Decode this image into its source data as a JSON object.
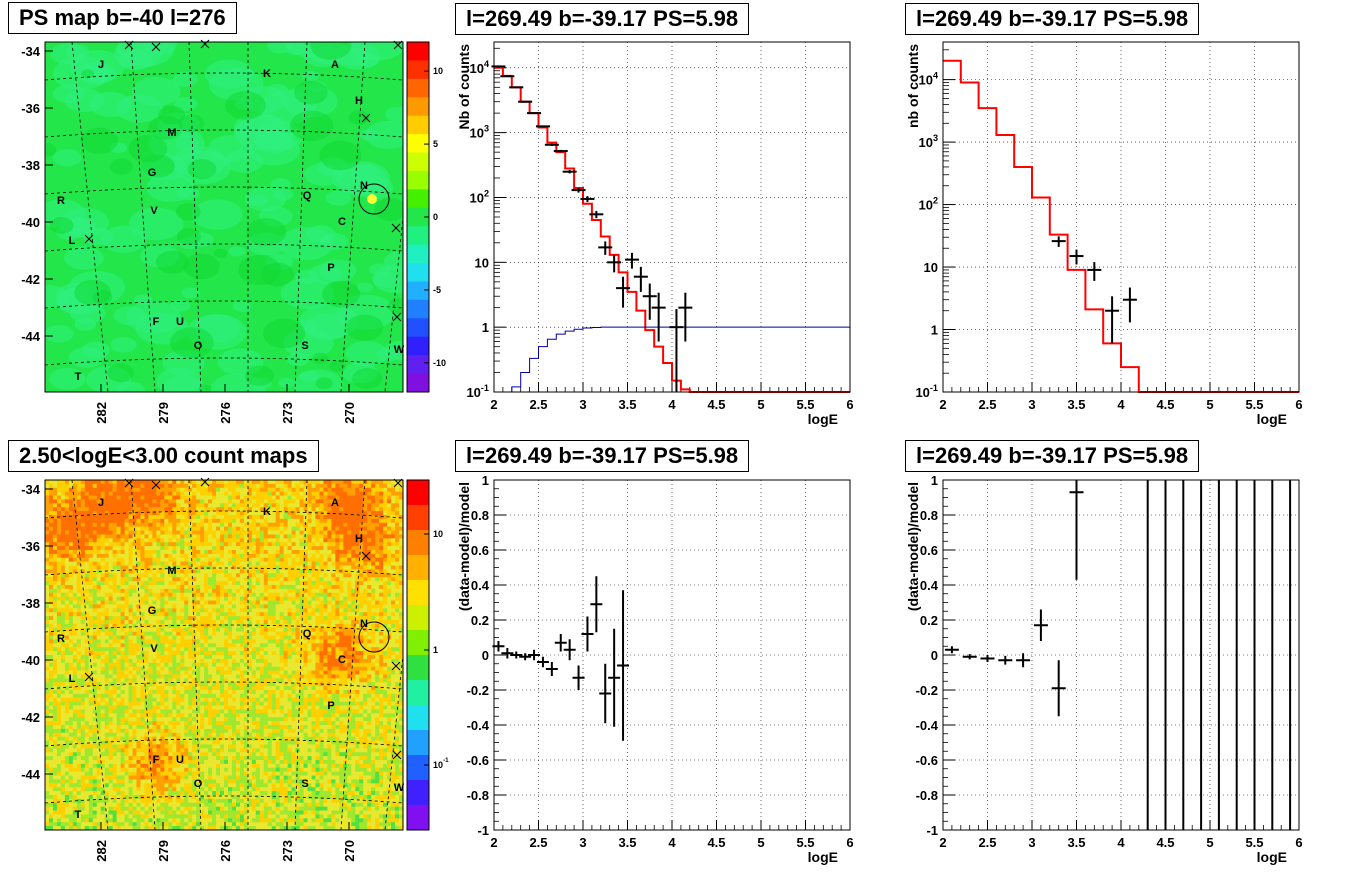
{
  "page": {
    "panels": {
      "map_top_title": "PS map b=-40 l=276",
      "map_bottom_title": "2.50<logE<3.00 count maps",
      "spec1_title": "l=269.49 b=-39.17 PS=5.98",
      "spec2_title": "l=269.49 b=-39.17 PS=5.98",
      "res1_title": "l=269.49 b=-39.17 PS=5.98",
      "res2_title": "l=269.49 b=-39.17 PS=5.98"
    }
  },
  "chart_data": [
    {
      "type": "heatmap",
      "title": "PS map b=-40 l=276",
      "x_ticks": [
        "282",
        "279",
        "276",
        "273",
        "270"
      ],
      "y_ticks": [
        "-34",
        "-36",
        "-38",
        "-40",
        "-42",
        "-44"
      ],
      "colorbar_ticks": [
        "10",
        "5",
        "0",
        "-5",
        "-10"
      ],
      "zlim": [
        -12,
        12
      ],
      "source_labels": [
        "J",
        "A",
        "K",
        "H",
        "M",
        "G",
        "N",
        "Q",
        "R",
        "V",
        "C",
        "L",
        "P",
        "F",
        "U",
        "O",
        "S",
        "W",
        "T"
      ],
      "colors": {
        "background": "#22e64a",
        "hotspot": "#ffff33",
        "cool_patch": "#30f080"
      }
    },
    {
      "type": "heatmap",
      "title": "2.50<logE<3.00 count maps",
      "x_ticks": [
        "282",
        "279",
        "276",
        "273",
        "270"
      ],
      "y_ticks": [
        "-34",
        "-36",
        "-38",
        "-40",
        "-42",
        "-44"
      ],
      "colorbar_ticks": [
        "10",
        "1",
        "10^-1"
      ],
      "z_scale": "log",
      "source_labels": [
        "J",
        "A",
        "K",
        "H",
        "M",
        "G",
        "N",
        "Q",
        "R",
        "V",
        "C",
        "L",
        "P",
        "F",
        "U",
        "O",
        "S",
        "W",
        "T"
      ],
      "colors": {
        "high": "#ff6a00",
        "mid": "#ffd000",
        "low": "#66e633"
      }
    },
    {
      "type": "line",
      "title": "l=269.49 b=-39.17 PS=5.98",
      "xlabel": "logE",
      "ylabel": "Nb of counts",
      "xlim": [
        2,
        6
      ],
      "ylim": [
        0.1,
        25000
      ],
      "y_scale": "log",
      "x_ticks": [
        "2",
        "2.5",
        "3",
        "3.5",
        "4",
        "4.5",
        "5",
        "5.5",
        "6"
      ],
      "y_ticks": [
        "10^-1",
        "1",
        "10",
        "10^2",
        "10^3",
        "10^4"
      ],
      "series": [
        {
          "style": "step",
          "color": "#ff0000",
          "bin_width": 0.1,
          "x": [
            2.0,
            2.1,
            2.2,
            2.3,
            2.4,
            2.5,
            2.6,
            2.7,
            2.8,
            2.9,
            3.0,
            3.1,
            3.2,
            3.3,
            3.4,
            3.5,
            3.6,
            3.7,
            3.8,
            3.9,
            4.0,
            4.1,
            4.2,
            4.3,
            4.4,
            4.5,
            4.6,
            4.7,
            4.8,
            4.9,
            5.0,
            5.1,
            5.2,
            5.3,
            5.4,
            5.5,
            5.6,
            5.7,
            5.8,
            5.9
          ],
          "values": [
            10000,
            7500,
            5000,
            3000,
            2000,
            1200,
            700,
            500,
            280,
            140,
            80,
            45,
            25,
            13,
            7,
            3.5,
            1.8,
            0.9,
            0.5,
            0.28,
            0.15,
            0.11,
            0.1,
            0.1,
            0.1,
            0.1,
            0.1,
            0.1,
            0.1,
            0.1,
            0.1,
            0.1,
            0.1,
            0.1,
            0.1,
            0.1,
            0.1,
            0.1,
            0.1,
            0.1
          ]
        },
        {
          "style": "step",
          "color": "#0000aa",
          "bin_width": 0.1,
          "x": [
            2.0,
            2.1,
            2.2,
            2.3,
            2.4,
            2.5,
            2.6,
            2.7,
            2.8,
            2.9,
            3.0,
            3.1,
            3.2,
            3.3,
            3.4,
            3.5,
            3.6,
            3.7,
            3.8,
            3.9,
            4.0,
            4.1,
            4.2,
            4.3,
            4.4,
            4.5,
            4.6,
            4.7,
            4.8,
            4.9,
            5.0,
            5.1,
            5.2,
            5.3,
            5.4,
            5.5,
            5.6,
            5.7,
            5.8,
            5.9
          ],
          "values": [
            0.05,
            0.07,
            0.12,
            0.2,
            0.33,
            0.5,
            0.65,
            0.78,
            0.87,
            0.93,
            0.97,
            0.99,
            1,
            1,
            1,
            1,
            1,
            1,
            1,
            1,
            1,
            1,
            1,
            1,
            1,
            1,
            1,
            1,
            1,
            1,
            1,
            1,
            1,
            1,
            1,
            1,
            1,
            1,
            1,
            1
          ]
        },
        {
          "style": "errorbar",
          "color": "#000000",
          "x": [
            2.05,
            2.15,
            2.25,
            2.35,
            2.45,
            2.55,
            2.65,
            2.75,
            2.85,
            2.95,
            3.05,
            3.15,
            3.25,
            3.35,
            3.45,
            3.55,
            3.65,
            3.75,
            3.85,
            4.05,
            4.15
          ],
          "values": [
            10500,
            7400,
            5000,
            3000,
            2000,
            1250,
            650,
            520,
            250,
            130,
            95,
            55,
            17,
            10,
            4,
            11,
            6,
            3,
            2,
            1,
            2
          ],
          "err_low": [
            100,
            85,
            70,
            55,
            45,
            35,
            25,
            22,
            15,
            11,
            10,
            7,
            4,
            3,
            2,
            3,
            2.5,
            1.7,
            1.4,
            0.9,
            1.4
          ],
          "err_high": [
            100,
            85,
            70,
            55,
            45,
            35,
            25,
            22,
            15,
            11,
            10,
            7,
            4,
            3,
            2,
            3,
            2.5,
            1.7,
            1.4,
            0.9,
            1.4
          ]
        }
      ]
    },
    {
      "type": "line",
      "title": "l=269.49 b=-39.17 PS=5.98",
      "xlabel": "logE",
      "ylabel": "nb of counts",
      "xlim": [
        2,
        6
      ],
      "ylim": [
        0.1,
        40000
      ],
      "y_scale": "log",
      "x_ticks": [
        "2",
        "2.5",
        "3",
        "3.5",
        "4",
        "4.5",
        "5",
        "5.5",
        "6"
      ],
      "y_ticks": [
        "10^-1",
        "1",
        "10",
        "10^2",
        "10^3",
        "10^4"
      ],
      "series": [
        {
          "style": "step",
          "color": "#ff0000",
          "bin_width": 0.2,
          "x": [
            2.0,
            2.2,
            2.4,
            2.6,
            2.8,
            3.0,
            3.2,
            3.4,
            3.6,
            3.8,
            4.0,
            4.2,
            4.4,
            4.6,
            4.8,
            5.0,
            5.2,
            5.4,
            5.6,
            5.8
          ],
          "values": [
            20000,
            9000,
            3500,
            1300,
            400,
            130,
            33,
            9,
            2.1,
            0.6,
            0.25,
            0.1,
            0.1,
            0.1,
            0.1,
            0.1,
            0.1,
            0.1,
            0.1,
            0.1
          ]
        },
        {
          "style": "errorbar",
          "color": "#000000",
          "x": [
            3.3,
            3.5,
            3.7,
            3.9,
            4.1
          ],
          "values": [
            26,
            15,
            9,
            2,
            3
          ],
          "err_low": [
            5,
            4,
            3,
            1.4,
            1.7
          ],
          "err_high": [
            5,
            4,
            3,
            1.4,
            1.7
          ]
        }
      ]
    },
    {
      "type": "scatter",
      "title": "l=269.49 b=-39.17 PS=5.98",
      "xlabel": "logE",
      "ylabel": "(data-model)/model",
      "xlim": [
        2,
        6
      ],
      "ylim": [
        -1,
        1
      ],
      "x_ticks": [
        "2",
        "2.5",
        "3",
        "3.5",
        "4",
        "4.5",
        "5",
        "5.5",
        "6"
      ],
      "y_ticks": [
        "-1",
        "-0.8",
        "-0.6",
        "-0.4",
        "-0.2",
        "0",
        "0.2",
        "0.4",
        "0.6",
        "0.8",
        "1"
      ],
      "series": [
        {
          "style": "errorbar",
          "color": "#000000",
          "x": [
            2.05,
            2.15,
            2.25,
            2.35,
            2.45,
            2.55,
            2.65,
            2.75,
            2.85,
            2.95,
            3.05,
            3.15,
            3.25,
            3.35,
            3.45
          ],
          "values": [
            0.05,
            0.01,
            0.0,
            -0.01,
            0.0,
            -0.04,
            -0.08,
            0.07,
            0.03,
            -0.13,
            0.12,
            0.29,
            -0.22,
            -0.13,
            -0.06
          ],
          "err": [
            0.03,
            0.03,
            0.02,
            0.02,
            0.03,
            0.03,
            0.04,
            0.05,
            0.06,
            0.07,
            0.1,
            0.16,
            0.17,
            0.28,
            0.43
          ]
        }
      ]
    },
    {
      "type": "scatter",
      "title": "l=269.49 b=-39.17 PS=5.98",
      "xlabel": "logE",
      "ylabel": "(data-model)/model",
      "xlim": [
        2,
        6
      ],
      "ylim": [
        -1,
        1
      ],
      "x_ticks": [
        "2",
        "2.5",
        "3",
        "3.5",
        "4",
        "4.5",
        "5",
        "5.5",
        "6"
      ],
      "y_ticks": [
        "-1",
        "-0.8",
        "-0.6",
        "-0.4",
        "-0.2",
        "0",
        "0.2",
        "0.4",
        "0.6",
        "0.8",
        "1"
      ],
      "series": [
        {
          "style": "errorbar",
          "color": "#000000",
          "x": [
            2.1,
            2.3,
            2.5,
            2.7,
            2.9,
            3.1,
            3.3,
            3.5
          ],
          "values": [
            0.03,
            -0.01,
            -0.02,
            -0.03,
            -0.03,
            0.17,
            -0.19,
            0.93
          ],
          "err": [
            0.02,
            0.015,
            0.02,
            0.025,
            0.04,
            0.09,
            0.16,
            0.5
          ]
        },
        {
          "style": "vline",
          "color": "#000000",
          "x": [
            4.3,
            4.5,
            4.7,
            4.9,
            5.1,
            5.3,
            5.5,
            5.7,
            5.9
          ]
        }
      ]
    }
  ]
}
